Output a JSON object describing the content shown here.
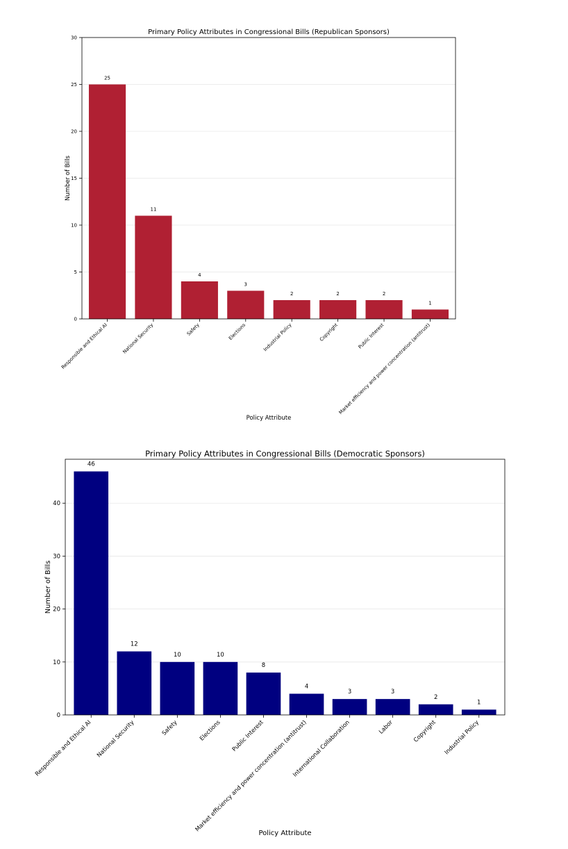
{
  "chart_data": [
    {
      "type": "bar",
      "title": "Primary Policy Attributes in Congressional Bills (Republican Sponsors)",
      "xlabel": "Policy Attribute",
      "ylabel": "Number of Bills",
      "categories": [
        "Responsible and Ethical AI",
        "National Security",
        "Safety",
        "Elections",
        "Industrial Policy",
        "Copyright",
        "Public Interest",
        "Market efficiency and power concentration (antitrust)"
      ],
      "values": [
        25,
        11,
        4,
        3,
        2,
        2,
        2,
        1
      ],
      "ylim": [
        0,
        30
      ],
      "yticks": [
        0,
        5,
        10,
        15,
        20,
        25,
        30
      ],
      "grid": "horizontal",
      "bar_color": "#b02033"
    },
    {
      "type": "bar",
      "title": "Primary Policy Attributes in Congressional Bills (Democratic Sponsors)",
      "xlabel": "Policy Attribute",
      "ylabel": "Number of Bills",
      "categories": [
        "Responsible and Ethical AI",
        "National Security",
        "Safety",
        "Elections",
        "Public Interest",
        "Market efficiency and power concentration (antitrust)",
        "International Collaboration",
        "Labor",
        "Copyright",
        "Industrial Policy"
      ],
      "values": [
        46,
        12,
        10,
        10,
        8,
        4,
        3,
        3,
        2,
        1
      ],
      "ylim": [
        0,
        48.3
      ],
      "yticks": [
        0,
        10,
        20,
        30,
        40
      ],
      "grid": "horizontal",
      "bar_color": "#000080"
    }
  ]
}
